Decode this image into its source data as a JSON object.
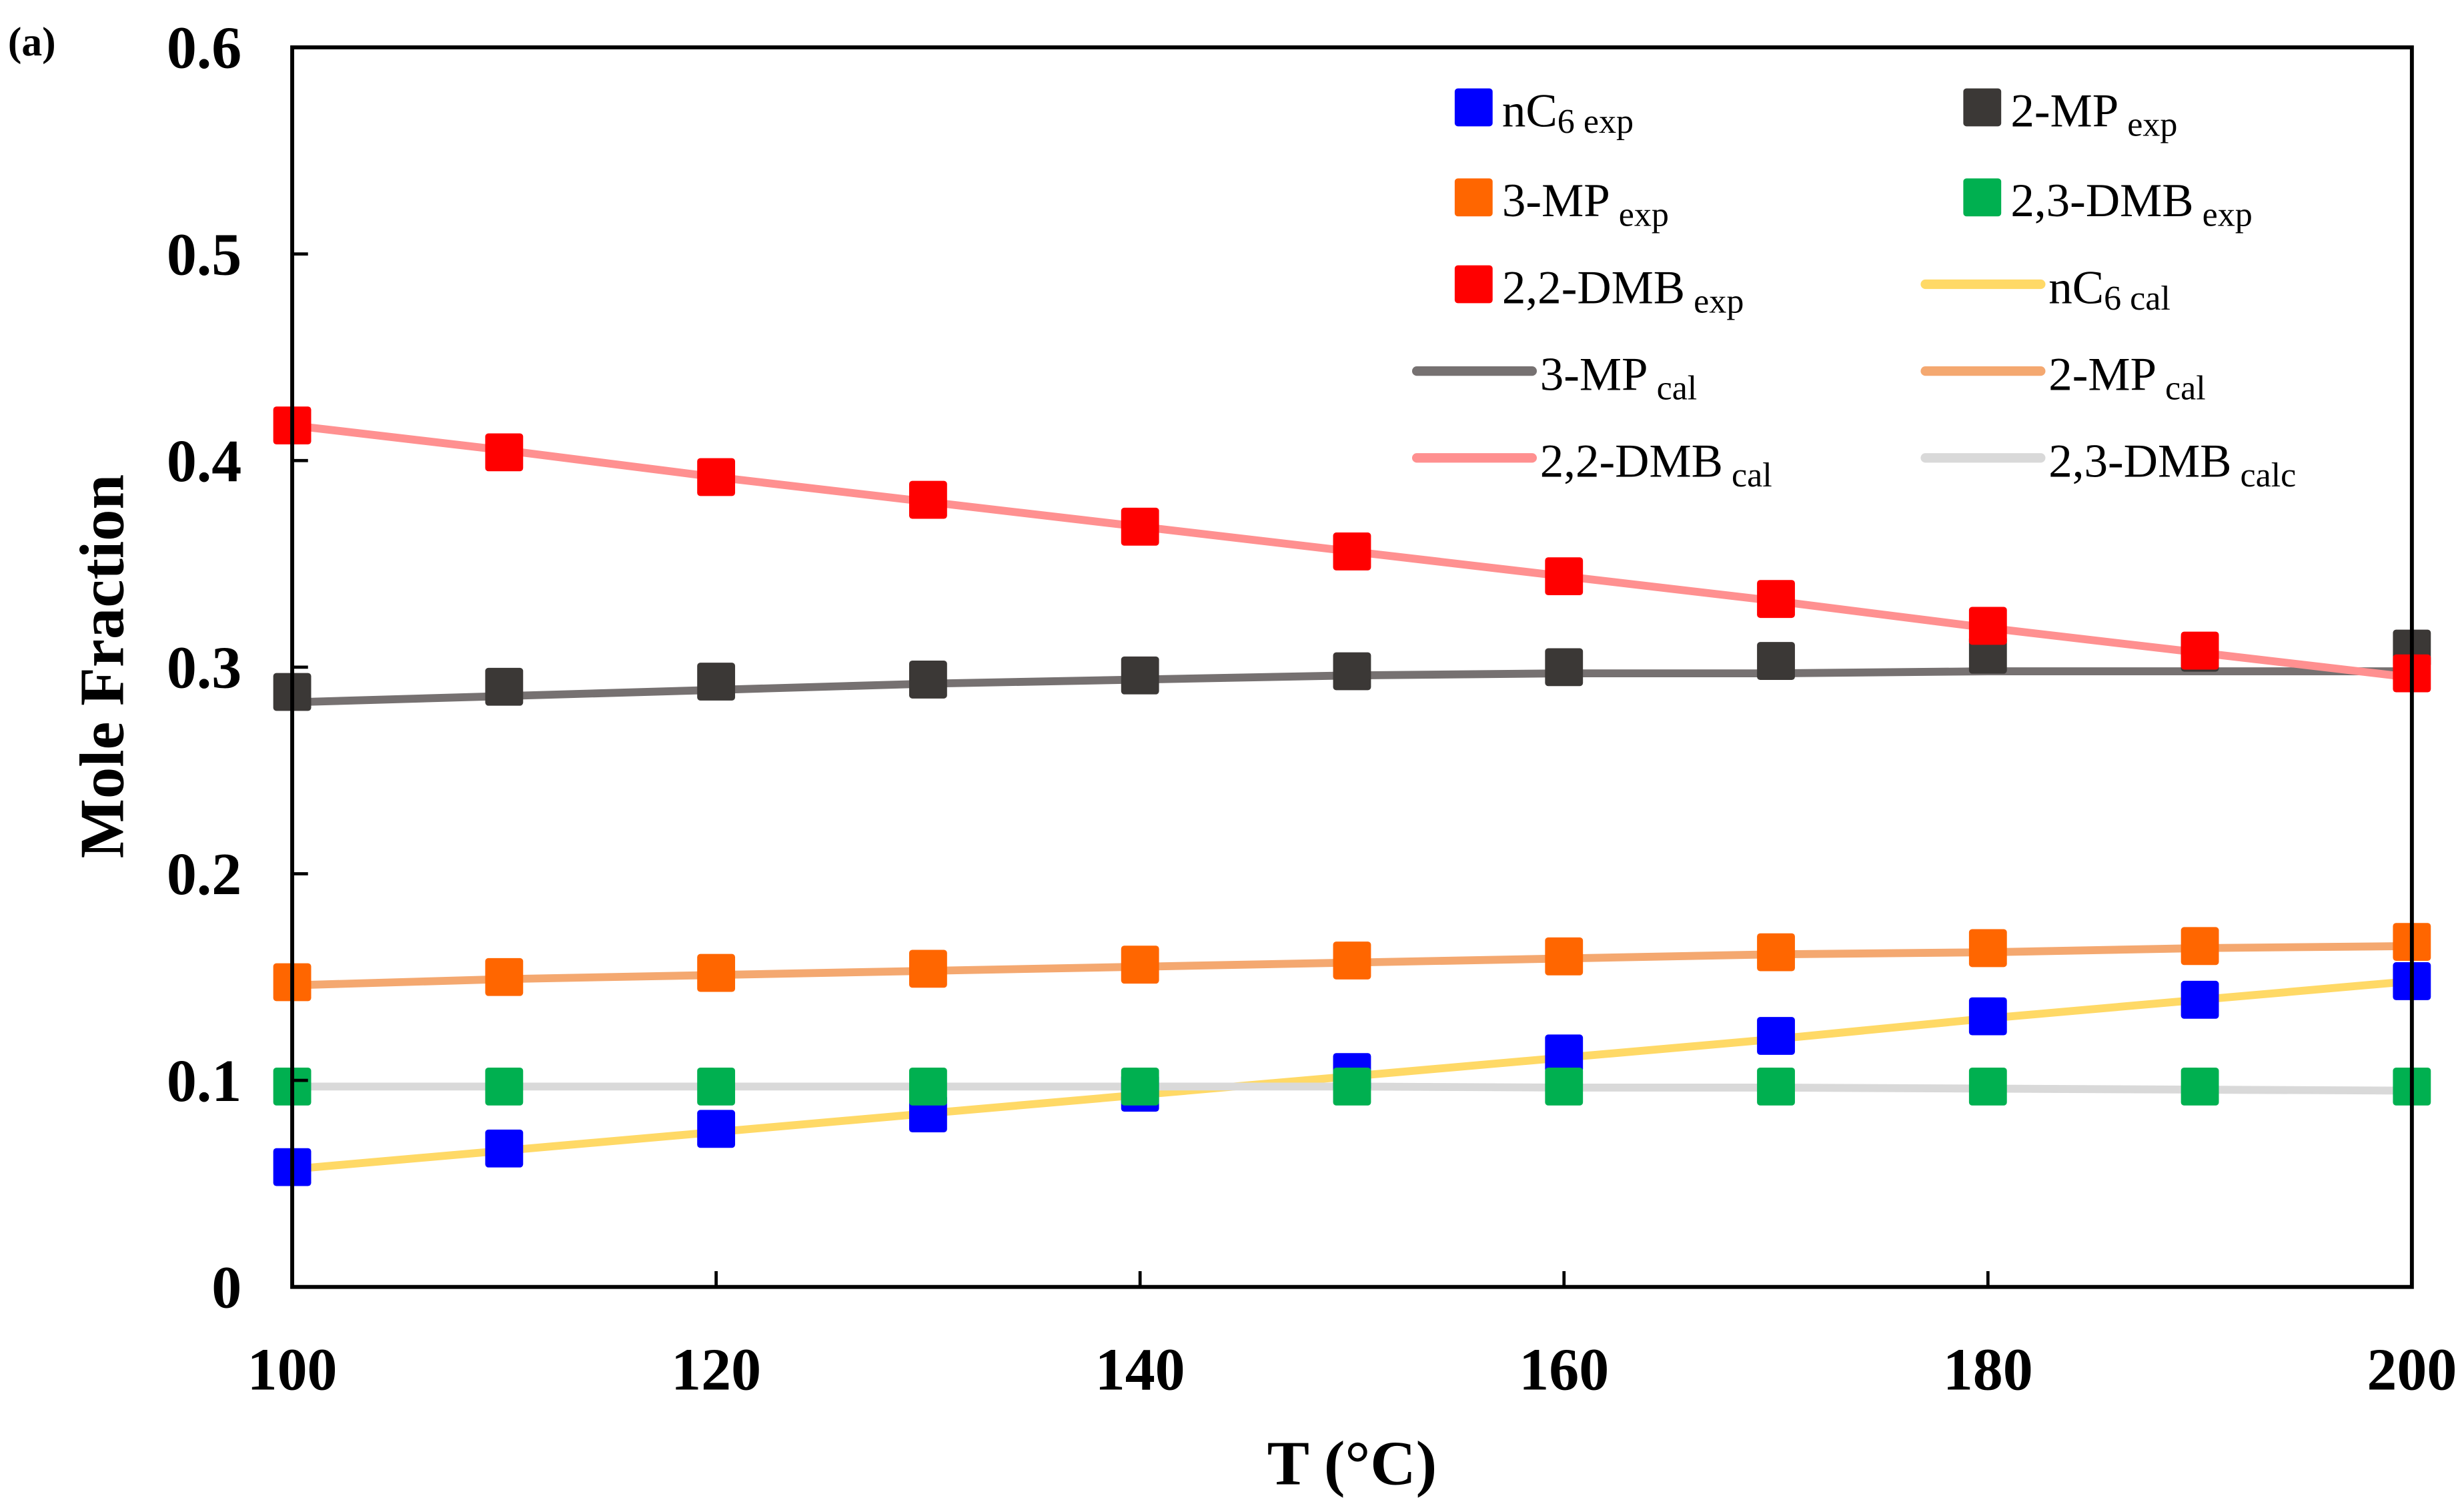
{
  "chart_data": {
    "type": "line",
    "panel_label": "(a)",
    "title": "",
    "xlabel": "T (°C)",
    "ylabel": "Mole Fraction",
    "xlim": [
      100,
      200
    ],
    "ylim": [
      0,
      0.6
    ],
    "xticks": [
      "100",
      "120",
      "140",
      "160",
      "180",
      "200"
    ],
    "yticks": [
      "0",
      "0.1",
      "0.2",
      "0.3",
      "0.4",
      "0.5",
      "0.6"
    ],
    "grid": false,
    "legend_placement": "top-right",
    "x": [
      100,
      110,
      120,
      130,
      140,
      150,
      160,
      170,
      180,
      190,
      200
    ],
    "series": [
      {
        "name": "nC6 exp",
        "base": "nC",
        "sub1": "6",
        "sub2": " exp",
        "kind": "marker",
        "color": "#0000ff",
        "values": [
          0.058,
          0.067,
          0.0765,
          0.084,
          0.094,
          0.104,
          0.113,
          0.1215,
          0.131,
          0.139,
          0.148
        ]
      },
      {
        "name": "2-MP exp",
        "base": "2-MP",
        "sub1": "",
        "sub2": " exp",
        "kind": "marker",
        "color": "#3b3836",
        "values": [
          0.288,
          0.2905,
          0.293,
          0.294,
          0.296,
          0.298,
          0.3,
          0.303,
          0.306,
          0.307,
          0.309
        ]
      },
      {
        "name": "3-MP exp",
        "base": "3-MP",
        "sub1": "",
        "sub2": " exp",
        "kind": "marker",
        "color": "#ff6600",
        "values": [
          0.1475,
          0.15,
          0.152,
          0.154,
          0.156,
          0.158,
          0.16,
          0.162,
          0.164,
          0.165,
          0.167
        ]
      },
      {
        "name": "2,3-DMB exp",
        "base": "2,3-DMB",
        "sub1": "",
        "sub2": " exp",
        "kind": "marker",
        "color": "#00b050",
        "values": [
          0.097,
          0.097,
          0.097,
          0.097,
          0.097,
          0.097,
          0.097,
          0.097,
          0.097,
          0.097,
          0.097
        ]
      },
      {
        "name": "2,2-DMB exp",
        "base": "2,2-DMB",
        "sub1": "",
        "sub2": " exp",
        "kind": "marker",
        "color": "#ff0000",
        "values": [
          0.417,
          0.404,
          0.392,
          0.381,
          0.368,
          0.356,
          0.344,
          0.333,
          0.32,
          0.308,
          0.297
        ]
      },
      {
        "name": "nC6 cal",
        "base": "nC",
        "sub1": "6",
        "sub2": " cal",
        "kind": "line",
        "color": "#ffd966",
        "values": [
          0.057,
          0.066,
          0.075,
          0.084,
          0.093,
          0.102,
          0.111,
          0.12,
          0.13,
          0.139,
          0.148
        ]
      },
      {
        "name": "3-MP cal",
        "base": "3-MP",
        "sub1": "",
        "sub2": " cal",
        "kind": "line",
        "color": "#767171",
        "values": [
          0.283,
          0.286,
          0.289,
          0.292,
          0.294,
          0.296,
          0.297,
          0.297,
          0.298,
          0.298,
          0.298
        ]
      },
      {
        "name": "2-MP cal",
        "base": "2-MP",
        "sub1": "",
        "sub2": " cal",
        "kind": "line",
        "color": "#f4a870",
        "values": [
          0.146,
          0.149,
          0.151,
          0.153,
          0.155,
          0.157,
          0.159,
          0.161,
          0.162,
          0.164,
          0.165
        ]
      },
      {
        "name": "2,2-DMB cal",
        "base": "2,2-DMB",
        "sub1": "",
        "sub2": " cal",
        "kind": "line",
        "color": "#ff9090",
        "values": [
          0.417,
          0.405,
          0.392,
          0.38,
          0.368,
          0.356,
          0.344,
          0.332,
          0.319,
          0.307,
          0.295
        ]
      },
      {
        "name": "2,3-DMB calc",
        "base": "2,3-DMB",
        "sub1": "",
        "sub2": " calc",
        "kind": "line",
        "color": "#d9d9d9",
        "values": [
          0.097,
          0.097,
          0.097,
          0.097,
          0.097,
          0.097,
          0.0965,
          0.0965,
          0.096,
          0.0955,
          0.095
        ]
      }
    ],
    "legend_order": [
      "nC6 exp",
      "2-MP exp",
      "3-MP exp",
      "2,3-DMB exp",
      "2,2-DMB exp",
      "nC6 cal",
      "3-MP cal",
      "2-MP cal",
      "2,2-DMB cal",
      "2,3-DMB calc"
    ]
  }
}
